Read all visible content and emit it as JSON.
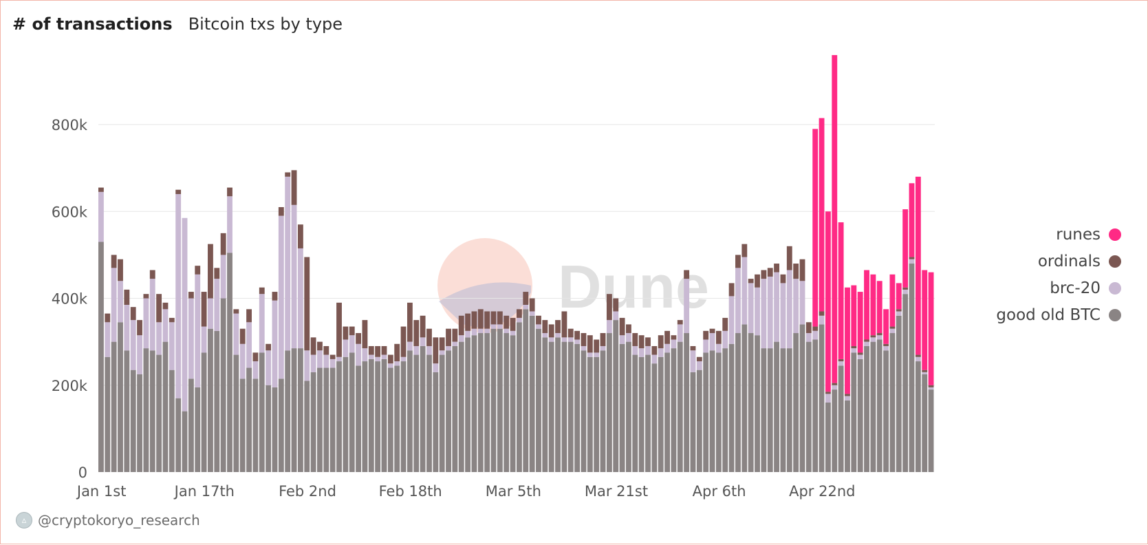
{
  "header": {
    "title": "# of transactions",
    "subtitle": "Bitcoin txs by type"
  },
  "watermark": {
    "text": "Dune"
  },
  "footer": {
    "handle": "@cryptokoryo_research"
  },
  "colors": {
    "runes": "#ff2a85",
    "ordinals": "#7b5752",
    "brc20": "#c9b9d3",
    "btc": "#8a8484",
    "grid": "#e6e6e6"
  },
  "chart_data": {
    "type": "bar",
    "stacked": true,
    "ylim": [
      0,
      930000
    ],
    "yticks": [
      {
        "value": 0,
        "label": "0"
      },
      {
        "value": 200000,
        "label": "200k"
      },
      {
        "value": 400000,
        "label": "400k"
      },
      {
        "value": 600000,
        "label": "600k"
      },
      {
        "value": 800000,
        "label": "800k"
      }
    ],
    "xticks": [
      {
        "index": 0,
        "label": "Jan 1st"
      },
      {
        "index": 16,
        "label": "Jan 17th"
      },
      {
        "index": 32,
        "label": "Feb 2nd"
      },
      {
        "index": 48,
        "label": "Feb 18th"
      },
      {
        "index": 64,
        "label": "Mar 5th"
      },
      {
        "index": 80,
        "label": "Mar 21st"
      },
      {
        "index": 96,
        "label": "Apr 6th"
      },
      {
        "index": 112,
        "label": "Apr 22nd"
      }
    ],
    "legend_position": "right",
    "series": [
      {
        "name": "runes",
        "key": "runes",
        "color": "#ff2a85",
        "values": [
          0,
          0,
          0,
          0,
          0,
          0,
          0,
          0,
          0,
          0,
          0,
          0,
          0,
          0,
          0,
          0,
          0,
          0,
          0,
          0,
          0,
          0,
          0,
          0,
          0,
          0,
          0,
          0,
          0,
          0,
          0,
          0,
          0,
          0,
          0,
          0,
          0,
          0,
          0,
          0,
          0,
          0,
          0,
          0,
          0,
          0,
          0,
          0,
          0,
          0,
          0,
          0,
          0,
          0,
          0,
          0,
          0,
          0,
          0,
          0,
          0,
          0,
          0,
          0,
          0,
          0,
          0,
          0,
          0,
          0,
          0,
          0,
          0,
          0,
          0,
          0,
          0,
          0,
          0,
          0,
          0,
          0,
          0,
          0,
          0,
          0,
          0,
          0,
          0,
          0,
          0,
          0,
          0,
          0,
          0,
          0,
          0,
          0,
          0,
          0,
          0,
          0,
          0,
          0,
          0,
          0,
          0,
          0,
          0,
          0,
          0,
          455000,
          445000,
          415000,
          755000,
          315000,
          245000,
          140000,
          140000,
          160000,
          140000,
          120000,
          80000,
          120000,
          60000,
          180000,
          170000,
          410000,
          230000,
          260000
        ]
      },
      {
        "name": "ordinals",
        "key": "ordinals",
        "color": "#7b5752",
        "values": [
          10000,
          20000,
          30000,
          50000,
          35000,
          30000,
          35000,
          10000,
          20000,
          65000,
          15000,
          10000,
          10000,
          0,
          15000,
          20000,
          80000,
          125000,
          25000,
          50000,
          20000,
          10000,
          35000,
          30000,
          20000,
          15000,
          15000,
          20000,
          20000,
          10000,
          80000,
          55000,
          215000,
          40000,
          20000,
          20000,
          10000,
          125000,
          30000,
          20000,
          25000,
          65000,
          20000,
          25000,
          20000,
          20000,
          40000,
          70000,
          90000,
          60000,
          50000,
          40000,
          60000,
          30000,
          40000,
          30000,
          45000,
          40000,
          40000,
          45000,
          40000,
          30000,
          30000,
          30000,
          30000,
          20000,
          30000,
          30000,
          20000,
          30000,
          30000,
          30000,
          60000,
          20000,
          20000,
          30000,
          40000,
          30000,
          30000,
          60000,
          30000,
          40000,
          20000,
          30000,
          30000,
          20000,
          20000,
          30000,
          30000,
          10000,
          10000,
          20000,
          10000,
          10000,
          20000,
          10000,
          30000,
          30000,
          30000,
          30000,
          30000,
          10000,
          30000,
          20000,
          20000,
          20000,
          20000,
          55000,
          35000,
          50000,
          25000,
          10000,
          10000,
          5000,
          5000,
          5000,
          5000,
          5000,
          5000,
          5000,
          5000,
          5000,
          5000,
          5000,
          5000,
          5000,
          5000,
          5000,
          5000,
          5000
        ]
      },
      {
        "name": "brc-20",
        "key": "brc20",
        "color": "#c9b9d3",
        "values": [
          115000,
          80000,
          170000,
          95000,
          105000,
          115000,
          90000,
          115000,
          165000,
          75000,
          75000,
          110000,
          470000,
          445000,
          185000,
          260000,
          60000,
          70000,
          120000,
          100000,
          130000,
          95000,
          80000,
          105000,
          40000,
          135000,
          80000,
          200000,
          375000,
          400000,
          330000,
          230000,
          70000,
          40000,
          40000,
          30000,
          20000,
          10000,
          40000,
          40000,
          50000,
          30000,
          10000,
          10000,
          10000,
          10000,
          10000,
          10000,
          20000,
          20000,
          20000,
          20000,
          20000,
          10000,
          10000,
          10000,
          15000,
          15000,
          15000,
          10000,
          10000,
          10000,
          10000,
          10000,
          10000,
          10000,
          10000,
          10000,
          10000,
          10000,
          10000,
          10000,
          10000,
          10000,
          10000,
          10000,
          10000,
          10000,
          10000,
          30000,
          20000,
          20000,
          20000,
          20000,
          20000,
          20000,
          20000,
          20000,
          20000,
          20000,
          40000,
          125000,
          50000,
          20000,
          30000,
          40000,
          20000,
          40000,
          110000,
          150000,
          155000,
          115000,
          110000,
          160000,
          165000,
          160000,
          150000,
          180000,
          125000,
          100000,
          20000,
          20000,
          20000,
          20000,
          10000,
          10000,
          10000,
          10000,
          10000,
          10000,
          10000,
          10000,
          10000,
          10000,
          10000,
          10000,
          10000,
          10000,
          5000,
          5000
        ]
      },
      {
        "name": "good old BTC",
        "key": "btc",
        "color": "#8a8484",
        "values": [
          530000,
          265000,
          300000,
          345000,
          280000,
          235000,
          225000,
          285000,
          280000,
          270000,
          300000,
          235000,
          170000,
          140000,
          215000,
          195000,
          275000,
          330000,
          325000,
          400000,
          505000,
          270000,
          215000,
          240000,
          215000,
          275000,
          200000,
          195000,
          215000,
          280000,
          285000,
          285000,
          210000,
          230000,
          240000,
          240000,
          240000,
          255000,
          265000,
          275000,
          245000,
          255000,
          260000,
          255000,
          260000,
          240000,
          245000,
          255000,
          280000,
          270000,
          290000,
          270000,
          230000,
          270000,
          280000,
          290000,
          300000,
          310000,
          315000,
          320000,
          320000,
          330000,
          330000,
          320000,
          315000,
          345000,
          375000,
          360000,
          330000,
          310000,
          300000,
          310000,
          300000,
          300000,
          295000,
          280000,
          265000,
          265000,
          280000,
          320000,
          350000,
          295000,
          300000,
          270000,
          265000,
          270000,
          250000,
          265000,
          275000,
          285000,
          300000,
          320000,
          230000,
          235000,
          275000,
          280000,
          275000,
          285000,
          295000,
          320000,
          340000,
          320000,
          315000,
          285000,
          285000,
          300000,
          285000,
          285000,
          320000,
          340000,
          300000,
          305000,
          340000,
          160000,
          190000,
          245000,
          165000,
          275000,
          260000,
          290000,
          300000,
          305000,
          280000,
          320000,
          360000,
          410000,
          480000,
          255000,
          225000,
          190000
        ]
      }
    ]
  }
}
